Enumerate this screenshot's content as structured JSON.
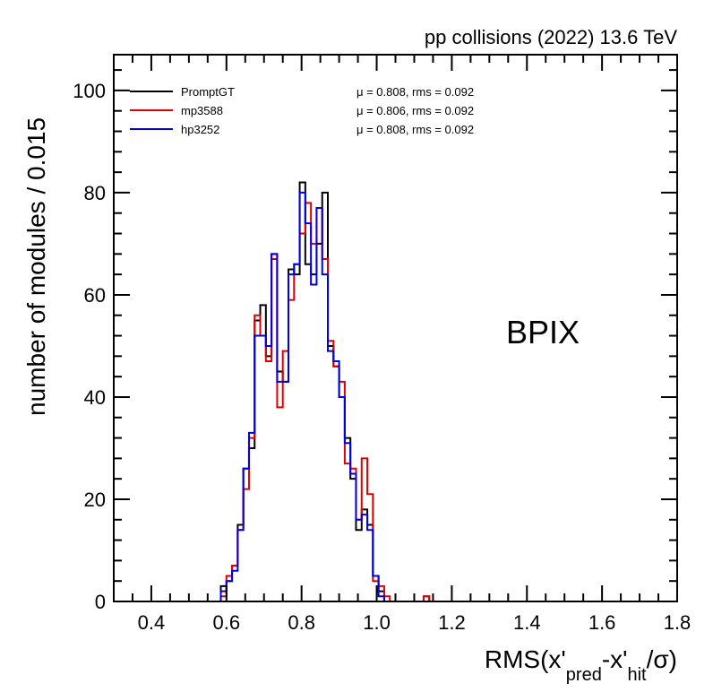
{
  "header": {
    "text": "pp collisions (2022) 13.6 TeV"
  },
  "region_label": "BPIX",
  "axes": {
    "xtitle_main": "RMS(x'",
    "xtitle_sub1": "pred",
    "xtitle_mid": "-x'",
    "xtitle_sub2": "hit",
    "xtitle_end": "/σ)",
    "ytitle": "number of modules / 0.015"
  },
  "chart_data": {
    "type": "histogram",
    "xlim": [
      0.3,
      1.8
    ],
    "ylim": [
      0,
      107
    ],
    "bin_width": 0.015,
    "xticks": [
      0.4,
      0.6,
      0.8,
      1.0,
      1.2,
      1.4,
      1.6,
      1.8
    ],
    "xtick_labels": [
      "0.4",
      "0.6",
      "0.8",
      "1.0",
      "1.2",
      "1.4",
      "1.6",
      "1.8"
    ],
    "yticks": [
      0,
      20,
      40,
      60,
      80,
      100
    ],
    "ytick_labels": [
      "0",
      "20",
      "40",
      "60",
      "80",
      "100"
    ],
    "series": [
      {
        "name": "PromptGT",
        "color": "#000000",
        "stats": "μ = 0.808,  rms = 0.092",
        "edges": [
          0.585,
          0.6,
          0.615,
          0.63,
          0.645,
          0.66,
          0.675,
          0.69,
          0.705,
          0.72,
          0.735,
          0.75,
          0.765,
          0.78,
          0.795,
          0.81,
          0.825,
          0.84,
          0.855,
          0.87,
          0.885,
          0.9,
          0.915,
          0.93,
          0.945,
          0.96,
          0.975,
          0.99,
          1.005,
          1.02,
          1.035,
          1.05,
          1.125,
          1.14,
          1.155
        ],
        "values": [
          3,
          4,
          7,
          15,
          26,
          30,
          55,
          58,
          48,
          68,
          45,
          43,
          65,
          64,
          82,
          66,
          64,
          70,
          80,
          50,
          46,
          40,
          32,
          24,
          14,
          18,
          15,
          5,
          2,
          0,
          0,
          0,
          1,
          0
        ]
      },
      {
        "name": "mp3588",
        "color": "#e00000",
        "stats": "μ = 0.806,  rms = 0.092",
        "edges": [
          0.585,
          0.6,
          0.615,
          0.63,
          0.645,
          0.66,
          0.675,
          0.69,
          0.705,
          0.72,
          0.735,
          0.75,
          0.765,
          0.78,
          0.795,
          0.81,
          0.825,
          0.84,
          0.855,
          0.87,
          0.885,
          0.9,
          0.915,
          0.93,
          0.945,
          0.96,
          0.975,
          0.99,
          1.005,
          1.02,
          1.035,
          1.05,
          1.125,
          1.14,
          1.155
        ],
        "values": [
          1,
          5,
          7,
          14,
          22,
          32,
          56,
          52,
          47,
          67,
          38,
          49,
          59,
          66,
          72,
          78,
          70,
          77,
          67,
          51,
          46,
          43,
          27,
          26,
          16,
          28,
          21,
          4,
          3,
          1,
          0,
          0,
          1,
          0
        ]
      },
      {
        "name": "hp3252",
        "color": "#0000e0",
        "stats": "μ = 0.808,  rms = 0.092",
        "edges": [
          0.585,
          0.6,
          0.615,
          0.63,
          0.645,
          0.66,
          0.675,
          0.69,
          0.705,
          0.72,
          0.735,
          0.75,
          0.765,
          0.78,
          0.795,
          0.81,
          0.825,
          0.84,
          0.855,
          0.87,
          0.885,
          0.9,
          0.915,
          0.93,
          0.945,
          0.96,
          0.975,
          0.99,
          1.005,
          1.02,
          1.035,
          1.05,
          1.125,
          1.14,
          1.155
        ],
        "values": [
          2,
          4,
          6,
          14,
          26,
          33,
          52,
          52,
          50,
          68,
          43,
          43,
          64,
          66,
          80,
          74,
          62,
          77,
          64,
          49,
          47,
          40,
          31,
          25,
          16,
          17,
          14,
          5,
          1,
          0,
          0,
          0,
          0,
          0
        ]
      }
    ]
  }
}
